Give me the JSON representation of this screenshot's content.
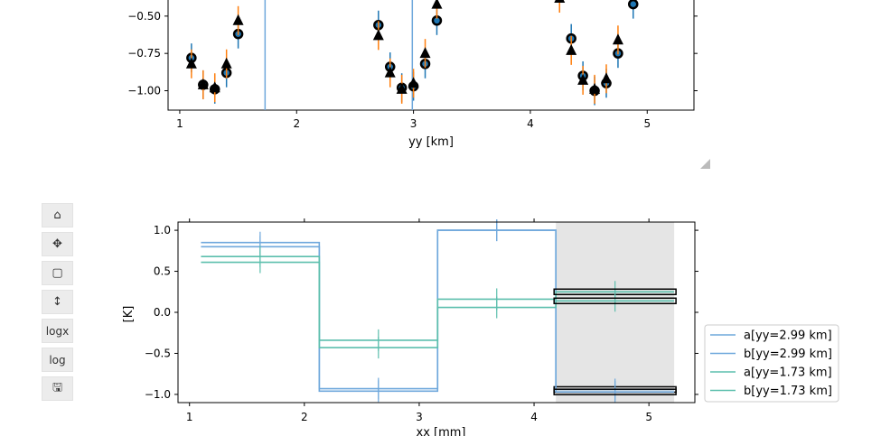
{
  "top_plot": {
    "xlabel": "yy [km]",
    "xticks": [
      "1",
      "2",
      "3",
      "4",
      "5"
    ],
    "yticks": [
      "−0.50",
      "−0.75",
      "−1.00"
    ]
  },
  "bottom_plot": {
    "xlabel": "xx [mm]",
    "ylabel": "[K]",
    "xticks": [
      "1",
      "2",
      "3",
      "4",
      "5"
    ],
    "yticks": [
      "1.0",
      "0.5",
      "0.0",
      "−0.5",
      "−1.0"
    ]
  },
  "legend": {
    "entries": [
      {
        "label": "a[yy=2.99 km]",
        "color": "#6fa8dc"
      },
      {
        "label": "b[yy=2.99 km]",
        "color": "#6fa8dc"
      },
      {
        "label": "a[yy=1.73 km]",
        "color": "#5cbfad"
      },
      {
        "label": "b[yy=1.73 km]",
        "color": "#5cbfad"
      }
    ]
  },
  "toolbar": {
    "buttons": [
      {
        "name": "home-button",
        "icon": "home-icon",
        "label": "⌂"
      },
      {
        "name": "pan-button",
        "icon": "move-icon",
        "label": "✥"
      },
      {
        "name": "zoom-button",
        "icon": "box-zoom-icon",
        "label": "▢"
      },
      {
        "name": "yrange-button",
        "icon": "vertical-arrows-icon",
        "label": "↕"
      },
      {
        "name": "logx-button",
        "icon": "",
        "label": "logx"
      },
      {
        "name": "log-button",
        "icon": "",
        "label": "log"
      },
      {
        "name": "save-button",
        "icon": "save-icon",
        "label": "🖫"
      }
    ]
  },
  "chart_data": [
    {
      "type": "scatter",
      "xlabel": "yy [km]",
      "xlim": [
        0.9,
        5.4
      ],
      "ylim": [
        -1.13,
        -0.38
      ],
      "vlines": [
        1.73,
        2.99
      ],
      "series": [
        {
          "marker": "circle",
          "x": [
            1.1,
            1.2,
            1.3,
            1.4,
            1.5,
            2.7,
            2.8,
            2.9,
            3.0,
            3.1,
            3.2,
            4.25,
            4.35,
            4.45,
            4.55,
            4.65,
            4.75,
            4.88
          ],
          "y": [
            -0.78,
            -0.96,
            -0.99,
            -0.88,
            -0.62,
            -0.56,
            -0.84,
            -0.98,
            -0.97,
            -0.82,
            -0.53,
            -0.37,
            -0.65,
            -0.9,
            -1.0,
            -0.95,
            -0.75,
            -0.42
          ]
        },
        {
          "marker": "triangle",
          "x": [
            1.1,
            1.2,
            1.3,
            1.4,
            1.5,
            2.7,
            2.8,
            2.9,
            3.0,
            3.1,
            3.2,
            4.25,
            4.35,
            4.45,
            4.55,
            4.65,
            4.75
          ],
          "y": [
            -0.82,
            -0.96,
            -0.98,
            -0.82,
            -0.53,
            -0.63,
            -0.88,
            -0.99,
            -0.95,
            -0.75,
            -0.42,
            -0.38,
            -0.73,
            -0.93,
            -0.99,
            -0.92,
            -0.66
          ]
        }
      ]
    },
    {
      "type": "line",
      "xlabel": "xx [mm]",
      "ylabel": "[K]",
      "xlim": [
        0.9,
        5.4
      ],
      "ylim": [
        -1.1,
        1.1
      ],
      "step_edges": [
        1.1,
        2.13,
        3.16,
        4.19,
        5.22
      ],
      "series": [
        {
          "name": "a[yy=2.99 km]",
          "color": "#6fa8dc",
          "values": [
            0.85,
            -0.93,
            1.0,
            -0.94
          ]
        },
        {
          "name": "b[yy=2.99 km]",
          "color": "#6fa8dc",
          "values": [
            0.8,
            -0.96,
            1.0,
            -0.97
          ]
        },
        {
          "name": "a[yy=1.73 km]",
          "color": "#5cbfad",
          "values": [
            0.68,
            -0.34,
            0.16,
            0.25
          ]
        },
        {
          "name": "b[yy=1.73 km]",
          "color": "#5cbfad",
          "values": [
            0.61,
            -0.43,
            0.06,
            0.14
          ]
        }
      ],
      "shaded_x": [
        4.19,
        5.22
      ]
    }
  ]
}
